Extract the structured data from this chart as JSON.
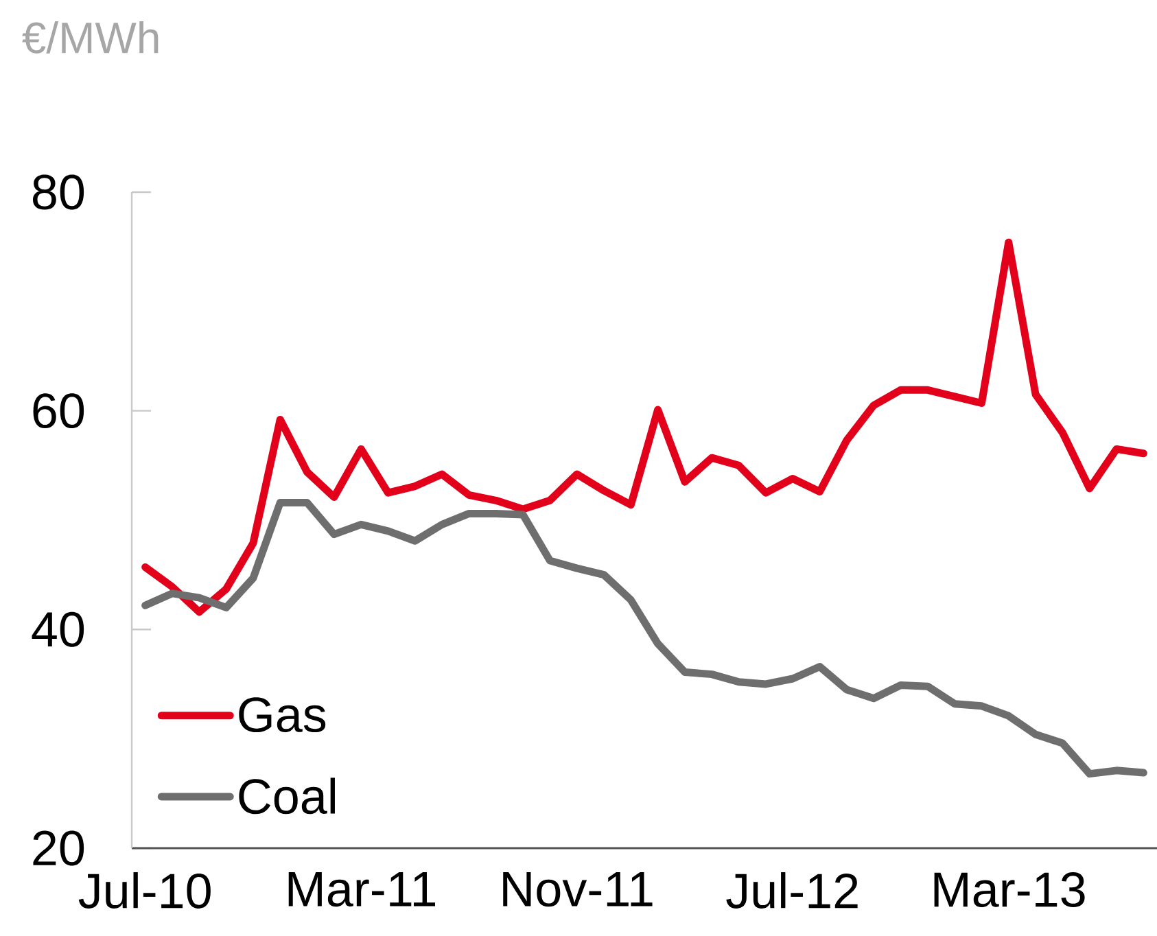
{
  "chart_data": {
    "type": "line",
    "ylabel": "€/MWh",
    "categories": [
      "Jul-10",
      null,
      null,
      null,
      null,
      null,
      null,
      null,
      "Mar-11",
      null,
      null,
      null,
      null,
      null,
      null,
      null,
      "Nov-11",
      null,
      null,
      null,
      null,
      null,
      null,
      null,
      "Jul-12",
      null,
      null,
      null,
      null,
      null,
      null,
      null,
      "Mar-13",
      null,
      null,
      null,
      null,
      null
    ],
    "series": [
      {
        "name": "Gas",
        "color": "#e2001a",
        "values": [
          45.7,
          43.9,
          41.6,
          43.7,
          47.9,
          59.2,
          54.4,
          52.1,
          56.5,
          52.5,
          53.1,
          54.2,
          52.3,
          51.8,
          51.0,
          51.8,
          54.2,
          52.7,
          51.4,
          60.1,
          53.5,
          55.7,
          55.0,
          52.5,
          53.8,
          52.6,
          57.3,
          60.5,
          61.9,
          61.9,
          61.3,
          60.7,
          75.4,
          61.5,
          58.0,
          52.9,
          56.5,
          56.1
        ]
      },
      {
        "name": "Coal",
        "color": "#6e6e6e",
        "values": [
          42.2,
          43.3,
          42.9,
          42.0,
          44.7,
          51.6,
          51.6,
          48.7,
          49.6,
          49.0,
          48.1,
          49.6,
          50.6,
          50.6,
          50.5,
          46.3,
          45.6,
          45.0,
          42.7,
          38.7,
          36.1,
          35.9,
          35.2,
          35.0,
          35.5,
          36.6,
          34.5,
          33.7,
          34.9,
          34.8,
          33.2,
          33.0,
          32.1,
          30.4,
          29.6,
          26.8,
          27.1,
          26.9
        ]
      }
    ],
    "ylim": [
      20,
      80
    ],
    "yticks": [
      20,
      40,
      60,
      80
    ],
    "legend": "bottom left",
    "marker": "none",
    "line_style": "solid"
  }
}
